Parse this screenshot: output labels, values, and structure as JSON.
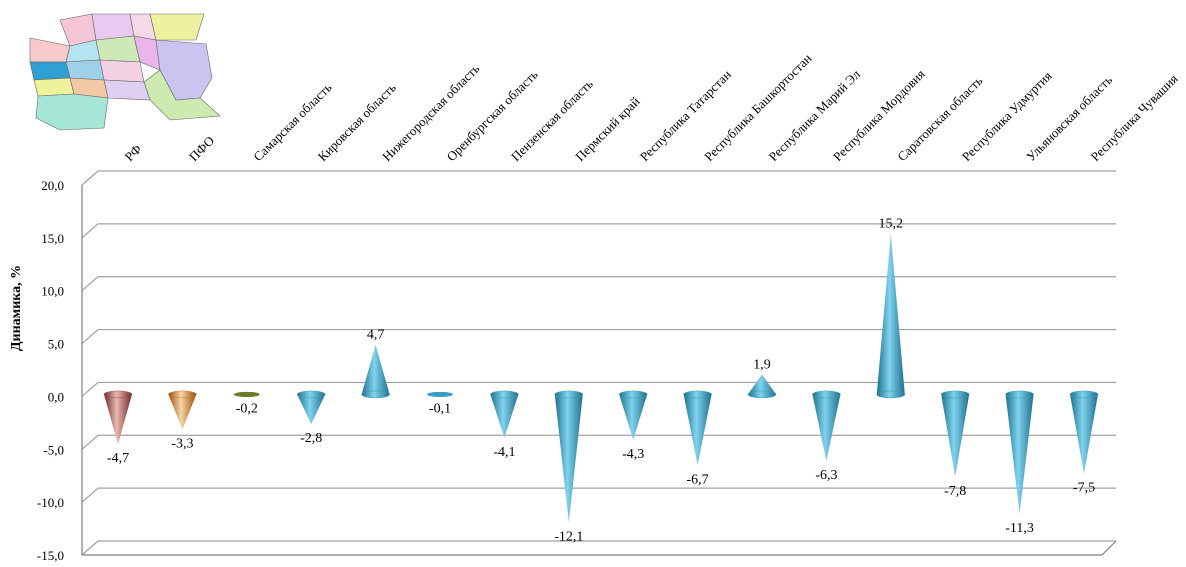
{
  "chart_data": {
    "type": "bar",
    "mark_shape": "cone",
    "title": "",
    "xlabel": "",
    "ylabel": "Динамика, %",
    "ylim": [
      -15,
      20
    ],
    "y_ticks": [
      "20,0",
      "15,0",
      "10,0",
      "5,0",
      "0,0",
      "-5,0",
      "-10,0",
      "-15,0"
    ],
    "grid": true,
    "legend": "none",
    "categories": [
      "РФ",
      "ПФО",
      "Самарская область",
      "Кировская область",
      "Нижегородская область",
      "Оренбургская область",
      "Пензенская область",
      "Пермский край",
      "Республика Татарстан",
      "Республика Башкортостан",
      "Республика Марий Эл",
      "Республика Мордовия",
      "Саратовская область",
      "Республика Удмуртия",
      "Ульяновская область",
      "Республика Чувашия"
    ],
    "values": [
      -4.7,
      -3.3,
      -0.2,
      -2.8,
      4.7,
      -0.1,
      -4.1,
      -12.1,
      -4.3,
      -6.7,
      1.9,
      -6.3,
      15.2,
      -7.8,
      -11.3,
      -7.5
    ],
    "value_labels": [
      "-4,7",
      "-3,3",
      "-0,2",
      "-2,8",
      "4,7",
      "-0,1",
      "-4,1",
      "-12,1",
      "-4,3",
      "-6,7",
      "1,9",
      "-6,3",
      "15,2",
      "-7,8",
      "-11,3",
      "-7,5"
    ],
    "colors": {
      "rf": "#a44a4a",
      "pfo": "#d97a1c",
      "samara": "#6e7a2a",
      "default": "#3a9fc2",
      "grid": "#a0a0a0",
      "axis": "#808080"
    }
  },
  "map": {
    "description_icon": "volga-federal-district-map-icon"
  }
}
